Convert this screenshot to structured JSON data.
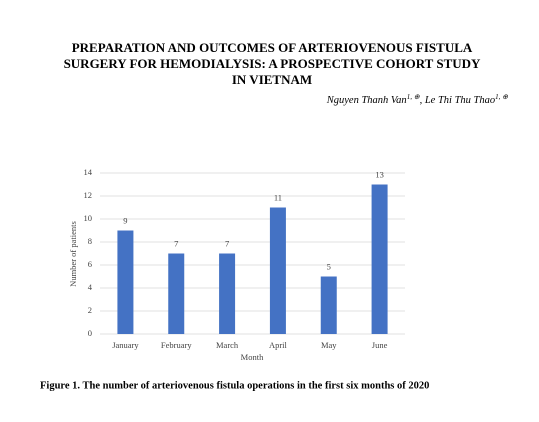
{
  "paper": {
    "title_lines": [
      "PREPARATION AND OUTCOMES OF ARTERIOVENOUS FISTULA",
      "SURGERY FOR HEMODIALYSIS: A PROSPECTIVE COHORT STUDY",
      "IN VIETNAM"
    ],
    "authors": [
      {
        "name": "Nguyen Thanh Van",
        "sup": "1, ⊕"
      },
      {
        "name": "Le Thi Thu Thao",
        "sup": "1, ⊕"
      }
    ],
    "caption": "Figure 1. The number of arteriovenous fistula operations in the first six months of 2020"
  },
  "chart_data": {
    "type": "bar",
    "categories": [
      "January",
      "February",
      "March",
      "April",
      "May",
      "June"
    ],
    "values": [
      9,
      7,
      7,
      11,
      5,
      13
    ],
    "color": "#4472c4",
    "ylim": [
      0,
      14
    ],
    "yticks": [
      0,
      2,
      4,
      6,
      8,
      10,
      12,
      14
    ],
    "grid": true,
    "ylabel": "Number of patients",
    "xlabel": "Month",
    "data_labels": true
  }
}
